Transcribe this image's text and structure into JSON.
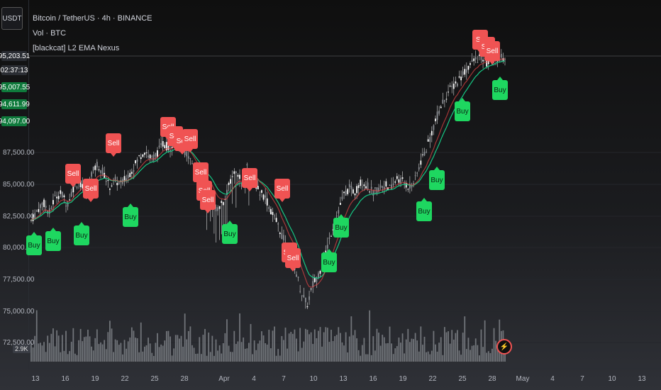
{
  "header": {
    "currency_button": "USDT",
    "title": "Bitcoin / TetherUS · 4h · BINANCE",
    "vol_label": "Vol · BTC",
    "indicator_label": "[blackcat] L2 EMA Nexus"
  },
  "y_axis": {
    "labels": [
      "87,500.00",
      "85,000.00",
      "82,500.00",
      "80,000.00",
      "77,500.00",
      "75,000.00",
      "72,500.00"
    ],
    "price_tags": {
      "current_price": "95,203.51",
      "countdown": "02:37:13",
      "ema_1": "95,007.55",
      "ema_2": "94,611.99",
      "ema_3": "94,097.00"
    },
    "volume_badge": "2.9K"
  },
  "x_axis": {
    "labels": [
      "13",
      "16",
      "19",
      "22",
      "25",
      "28",
      "Apr",
      "4",
      "7",
      "10",
      "13",
      "16",
      "19",
      "22",
      "25",
      "28",
      "May",
      "4",
      "7",
      "10",
      "13"
    ]
  },
  "colors": {
    "sell": "#f05353",
    "buy": "#1ed760",
    "candle": "#d9d9d9",
    "ema_fast": "#16c784",
    "ema_slow": "#e04545",
    "volume": "#8a8d93"
  },
  "markers": [
    {
      "type": "sell",
      "label": "Sell"
    },
    {
      "type": "sell",
      "label": "Sell"
    },
    {
      "type": "sell",
      "label": "Sell"
    },
    {
      "type": "sell",
      "label": "Sell"
    },
    {
      "type": "sell",
      "label": "Sell"
    },
    {
      "type": "sell",
      "label": "Sell"
    },
    {
      "type": "sell",
      "label": "Sell"
    },
    {
      "type": "sell",
      "label": "Sell"
    },
    {
      "type": "sell",
      "label": "Sell"
    },
    {
      "type": "sell",
      "label": "Sell"
    },
    {
      "type": "sell",
      "label": "Sell"
    },
    {
      "type": "sell",
      "label": "Sell"
    },
    {
      "type": "sell",
      "label": "Sell"
    },
    {
      "type": "sell",
      "label": "Sell"
    },
    {
      "type": "sell",
      "label": "Se"
    },
    {
      "type": "sell",
      "label": "Sell"
    },
    {
      "type": "sell",
      "label": "Sell"
    },
    {
      "type": "buy",
      "label": "Buy"
    },
    {
      "type": "buy",
      "label": "Buy"
    },
    {
      "type": "buy",
      "label": "Buy"
    },
    {
      "type": "buy",
      "label": "Buy"
    },
    {
      "type": "buy",
      "label": "Buy"
    },
    {
      "type": "buy",
      "label": "Buy"
    },
    {
      "type": "buy",
      "label": "Buy"
    },
    {
      "type": "buy",
      "label": "Buy"
    },
    {
      "type": "buy",
      "label": "Buy"
    },
    {
      "type": "buy",
      "label": "Buy"
    },
    {
      "type": "buy",
      "label": "Buy"
    }
  ],
  "series": {
    "price_path": [
      82000,
      82800,
      83500,
      82600,
      83900,
      84200,
      83300,
      84600,
      85200,
      84100,
      85700,
      86500,
      85900,
      84700,
      85200,
      84900,
      85500,
      86200,
      87100,
      87600,
      86900,
      87400,
      88200,
      87800,
      88500,
      88100,
      87300,
      86500,
      85100,
      84300,
      83900,
      82800,
      83500,
      84800,
      85900,
      85200,
      86400,
      85400,
      84300,
      83900,
      82700,
      81800,
      80600,
      79500,
      78200,
      76300,
      75200,
      76900,
      77800,
      79200,
      81000,
      82500,
      83900,
      84600,
      84300,
      85100,
      84800,
      84200,
      84600,
      84900,
      84500,
      85400,
      85100,
      84700,
      85200,
      86800,
      87900,
      89400,
      90800,
      91900,
      92600,
      93100,
      93800,
      94400,
      94900,
      95100,
      94600,
      94800,
      95100,
      95203
    ]
  }
}
